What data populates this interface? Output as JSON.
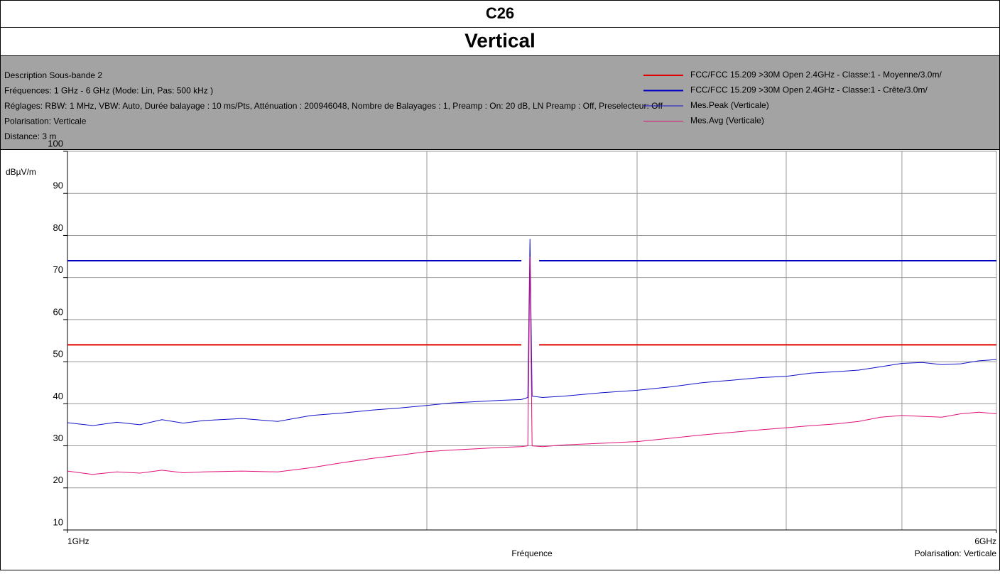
{
  "header": {
    "title": "C26",
    "subtitle": "Vertical"
  },
  "info": [
    "Description Sous-bande 2",
    "Fréquences: 1 GHz - 6 GHz (Mode: Lin, Pas: 500 kHz )",
    "Réglages: RBW: 1 MHz, VBW: Auto, Durée balayage : 10 ms/Pts, Atténuation : 200946048, Nombre de Balayages : 1, Preamp : On: 20 dB, LN Preamp : Off, Preselecteur: Off",
    "Polarisation: Verticale",
    "Distance: 3 m"
  ],
  "chart_data": {
    "type": "line",
    "y_label": "dBµV/m",
    "x_label": "Fréquence",
    "annotation": "Polarisation: Verticale",
    "xscale": "log",
    "xlim": [
      1,
      6
    ],
    "xticks": [
      {
        "value": 1,
        "label": "1GHz"
      },
      {
        "value": 6,
        "label": "6GHz"
      }
    ],
    "xgrid": [
      2,
      3,
      4,
      5
    ],
    "ylim": [
      10,
      100
    ],
    "yticks": [
      10,
      20,
      30,
      40,
      50,
      60,
      70,
      80,
      90,
      100
    ],
    "grid": true,
    "series": [
      {
        "name": "FCC/FCC 15.209 >30M Open 2.4GHz - Classe:1 - Moyenne/3.0m/",
        "color": "#e00000",
        "width": 2,
        "x": [
          1,
          2.4,
          2.44,
          2.4835,
          6
        ],
        "values": [
          54,
          54,
          null,
          54,
          54
        ]
      },
      {
        "name": "FCC/FCC 15.209 >30M Open 2.4GHz - Classe:1 - Crête/3.0m/",
        "color": "#0000c0",
        "width": 2,
        "x": [
          1,
          2.4,
          2.44,
          2.4835,
          6
        ],
        "values": [
          74,
          74,
          null,
          74,
          74
        ]
      },
      {
        "name": "Mes.Peak (Verticale)",
        "color": "#1010c8",
        "width": 1,
        "x": [
          1.0,
          1.05,
          1.1,
          1.15,
          1.2,
          1.25,
          1.3,
          1.4,
          1.5,
          1.6,
          1.7,
          1.8,
          1.9,
          2.0,
          2.1,
          2.2,
          2.3,
          2.4,
          2.43,
          2.44,
          2.45,
          2.5,
          2.6,
          2.8,
          3.0,
          3.2,
          3.4,
          3.6,
          3.8,
          4.0,
          4.2,
          4.4,
          4.6,
          4.8,
          5.0,
          5.2,
          5.4,
          5.6,
          5.8,
          6.0
        ],
        "values": [
          35.5,
          34.8,
          35.6,
          35.0,
          36.2,
          35.4,
          36.0,
          36.5,
          35.8,
          37.2,
          37.8,
          38.5,
          39.0,
          39.6,
          40.2,
          40.5,
          40.8,
          41.0,
          41.5,
          79.2,
          41.8,
          41.5,
          41.8,
          42.6,
          43.2,
          44.0,
          45.0,
          45.6,
          46.2,
          46.5,
          47.3,
          47.6,
          48.0,
          48.8,
          49.6,
          49.8,
          49.3,
          49.5,
          50.2,
          50.5
        ]
      },
      {
        "name": "Mes.Avg (Verticale)",
        "color": "#e0107a",
        "width": 1,
        "x": [
          1.0,
          1.05,
          1.1,
          1.15,
          1.2,
          1.25,
          1.3,
          1.4,
          1.5,
          1.6,
          1.7,
          1.8,
          1.9,
          2.0,
          2.1,
          2.2,
          2.3,
          2.4,
          2.43,
          2.44,
          2.45,
          2.5,
          2.6,
          2.8,
          3.0,
          3.2,
          3.4,
          3.6,
          3.8,
          4.0,
          4.2,
          4.4,
          4.6,
          4.8,
          5.0,
          5.2,
          5.4,
          5.6,
          5.8,
          6.0
        ],
        "values": [
          24.0,
          23.2,
          23.8,
          23.5,
          24.2,
          23.6,
          23.8,
          24.0,
          23.8,
          24.8,
          26.0,
          27.0,
          27.8,
          28.6,
          29.0,
          29.3,
          29.6,
          29.8,
          30.0,
          75.0,
          30.0,
          29.8,
          30.2,
          30.6,
          31.0,
          31.8,
          32.6,
          33.2,
          33.8,
          34.3,
          34.8,
          35.2,
          35.8,
          36.8,
          37.2,
          37.0,
          36.8,
          37.6,
          38.0,
          37.6
        ]
      }
    ]
  }
}
